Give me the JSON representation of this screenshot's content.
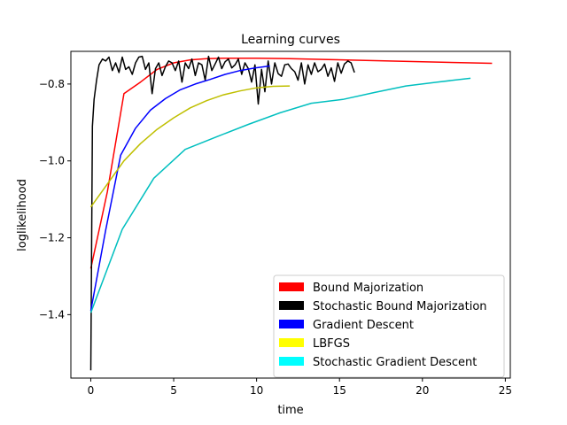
{
  "chart_data": {
    "type": "line",
    "title": "Learning curves",
    "xlabel": "time",
    "ylabel": "loglikelihood",
    "xlim": [
      -1.2,
      25.3
    ],
    "ylim": [
      -1.565,
      -0.715
    ],
    "xticks": [
      0,
      5,
      10,
      15,
      20,
      25
    ],
    "xtick_labels": [
      "0",
      "5",
      "10",
      "15",
      "20",
      "25"
    ],
    "yticks": [
      -1.4,
      -1.2,
      -1.0,
      -0.8
    ],
    "ytick_labels": [
      "−1.4",
      "−1.2",
      "−1.0",
      "−0.8"
    ],
    "grid": false,
    "legend_position": "lower-right",
    "series": [
      {
        "name": "Bound Majorization",
        "color": "#ff0000",
        "x": [
          0,
          1,
          2,
          3,
          4,
          5,
          6,
          7,
          8,
          10,
          12,
          14,
          16,
          18,
          20,
          22,
          24.2
        ],
        "y": [
          -1.28,
          -1.08,
          -0.825,
          -0.795,
          -0.762,
          -0.745,
          -0.737,
          -0.734,
          -0.733,
          -0.733,
          -0.734,
          -0.736,
          -0.738,
          -0.74,
          -0.742,
          -0.744,
          -0.746
        ]
      },
      {
        "name": "Stochastic Bound Majorization",
        "color": "#000000",
        "x": [
          0,
          0.1,
          0.2,
          0.35,
          0.5,
          0.7,
          0.9,
          1.1,
          1.3,
          1.5,
          1.7,
          1.9,
          2.1,
          2.3,
          2.5,
          2.7,
          2.9,
          3.1,
          3.3,
          3.5,
          3.7,
          3.9,
          4.1,
          4.3,
          4.5,
          4.7,
          4.9,
          5.1,
          5.3,
          5.5,
          5.7,
          5.9,
          6.1,
          6.3,
          6.5,
          6.7,
          6.9,
          7.1,
          7.3,
          7.5,
          7.7,
          7.9,
          8.1,
          8.3,
          8.5,
          8.7,
          8.9,
          9.1,
          9.3,
          9.5,
          9.7,
          9.9,
          10.1,
          10.3,
          10.5,
          10.7,
          10.9,
          11.1,
          11.3,
          11.5,
          11.7,
          11.9,
          12.1,
          12.3,
          12.5,
          12.7,
          12.9,
          13.1,
          13.3,
          13.5,
          13.7,
          13.9,
          14.1,
          14.3,
          14.5,
          14.7,
          14.9,
          15.1,
          15.3,
          15.5,
          15.7,
          15.9
        ],
        "y": [
          -1.545,
          -0.91,
          -0.84,
          -0.79,
          -0.75,
          -0.735,
          -0.74,
          -0.73,
          -0.765,
          -0.745,
          -0.77,
          -0.73,
          -0.762,
          -0.755,
          -0.775,
          -0.745,
          -0.73,
          -0.728,
          -0.762,
          -0.745,
          -0.825,
          -0.76,
          -0.745,
          -0.778,
          -0.755,
          -0.74,
          -0.745,
          -0.765,
          -0.74,
          -0.795,
          -0.745,
          -0.76,
          -0.735,
          -0.778,
          -0.745,
          -0.75,
          -0.79,
          -0.728,
          -0.765,
          -0.748,
          -0.73,
          -0.76,
          -0.742,
          -0.735,
          -0.758,
          -0.75,
          -0.735,
          -0.775,
          -0.745,
          -0.76,
          -0.795,
          -0.75,
          -0.852,
          -0.762,
          -0.82,
          -0.74,
          -0.8,
          -0.745,
          -0.773,
          -0.78,
          -0.75,
          -0.748,
          -0.76,
          -0.768,
          -0.79,
          -0.745,
          -0.8,
          -0.75,
          -0.775,
          -0.745,
          -0.768,
          -0.762,
          -0.748,
          -0.78,
          -0.758,
          -0.793,
          -0.745,
          -0.772,
          -0.748,
          -0.74,
          -0.745,
          -0.77
        ]
      },
      {
        "name": "Gradient Descent",
        "color": "#0000ff",
        "x": [
          0,
          0.9,
          1.8,
          2.7,
          3.6,
          4.5,
          5.4,
          6.3,
          7.2,
          8.1,
          9.0,
          9.9,
          10.8
        ],
        "y": [
          -1.39,
          -1.18,
          -0.985,
          -0.915,
          -0.868,
          -0.838,
          -0.815,
          -0.8,
          -0.788,
          -0.775,
          -0.765,
          -0.758,
          -0.753
        ]
      },
      {
        "name": "LBFGS",
        "color": "#bfbf00",
        "x": [
          0,
          1,
          2,
          3,
          4,
          5,
          6,
          7,
          8,
          9,
          10,
          11,
          12
        ],
        "y": [
          -1.12,
          -1.06,
          -1.0,
          -0.955,
          -0.918,
          -0.888,
          -0.862,
          -0.843,
          -0.828,
          -0.818,
          -0.81,
          -0.806,
          -0.805
        ]
      },
      {
        "name": "Stochastic Gradient Descent",
        "color": "#00bfbf",
        "x": [
          0,
          1.9,
          3.8,
          5.7,
          7.6,
          9.5,
          11.4,
          13.3,
          15.2,
          17.1,
          19.0,
          20.9,
          22.9
        ],
        "y": [
          -1.395,
          -1.178,
          -1.045,
          -0.97,
          -0.937,
          -0.905,
          -0.875,
          -0.85,
          -0.84,
          -0.822,
          -0.805,
          -0.795,
          -0.785
        ]
      }
    ]
  }
}
